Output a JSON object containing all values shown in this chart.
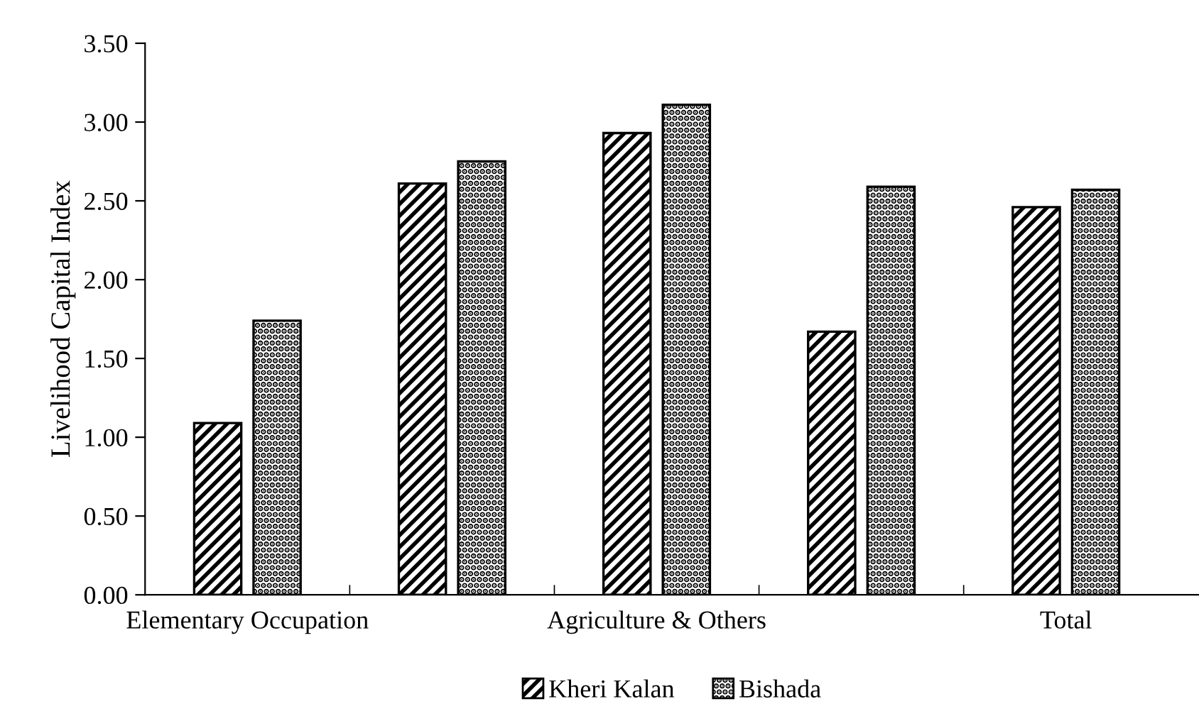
{
  "chart_data": {
    "type": "bar",
    "ylabel": "Livelihood Capital Index",
    "categories": [
      "Elementary Occupation",
      null,
      "Agriculture & Others",
      null,
      "Total"
    ],
    "series": [
      {
        "name": "Kheri Kalan",
        "color": "#000000",
        "values": [
          1.09,
          2.61,
          2.93,
          1.67,
          2.46
        ]
      },
      {
        "name": "Bishada",
        "color": "#000000",
        "values": [
          1.74,
          2.75,
          3.11,
          2.59,
          2.57
        ]
      }
    ],
    "ylim": [
      0,
      3.5
    ],
    "yticks": [
      {
        "value": 0,
        "label": "0.00"
      },
      {
        "value": 0.5,
        "label": "0.50"
      },
      {
        "value": 1,
        "label": "1.00"
      },
      {
        "value": 1.5,
        "label": "1.50"
      },
      {
        "value": 2,
        "label": "2.00"
      },
      {
        "value": 2.5,
        "label": "2.50"
      },
      {
        "value": 3,
        "label": "3.00"
      },
      {
        "value": 3.5,
        "label": "3.50"
      }
    ],
    "grid": false,
    "legend": "bottom"
  }
}
